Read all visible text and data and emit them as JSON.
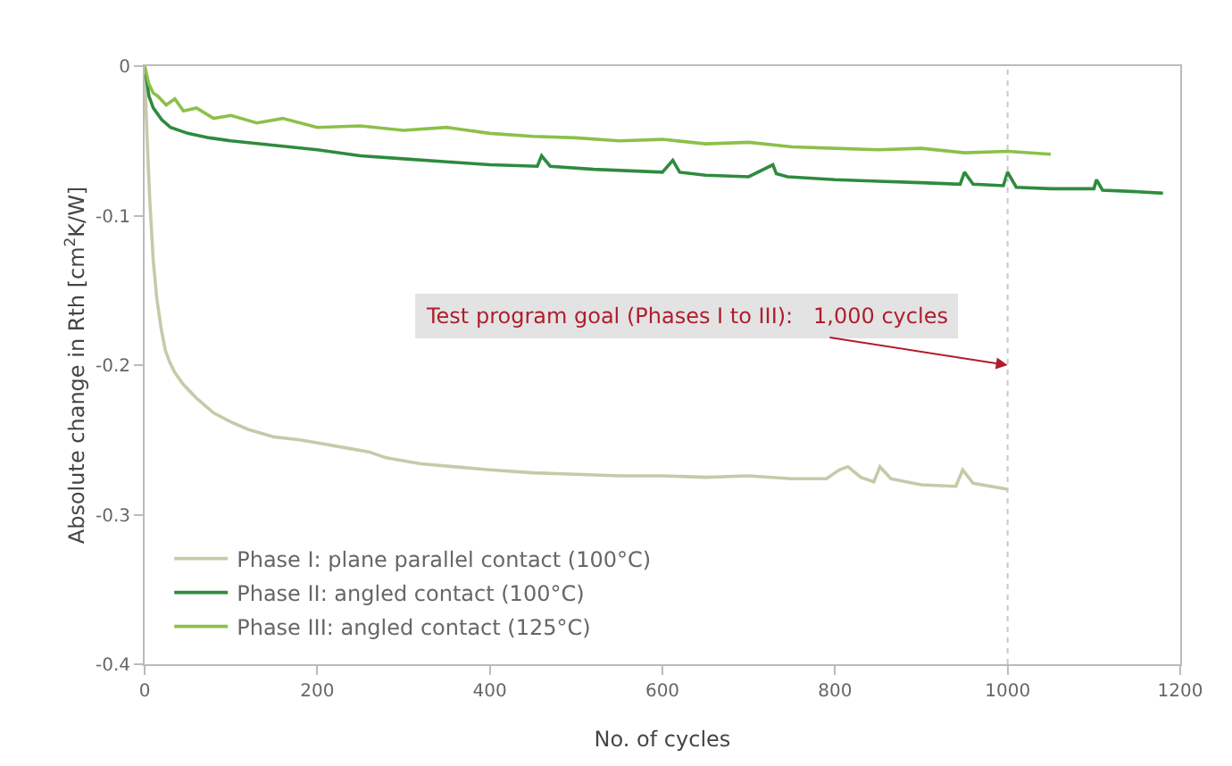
{
  "chart_data": {
    "type": "line",
    "xlabel": "No. of cycles",
    "ylabel": "Absolute change in Rth [cm$^{2}$K/W]",
    "xlim": [
      0,
      1200
    ],
    "xticks": [
      0,
      200,
      400,
      600,
      800,
      1000,
      1200
    ],
    "ylim": [
      -0.4,
      0
    ],
    "yticks": [
      -0.4,
      -0.3,
      -0.2,
      -0.1,
      0
    ],
    "grid": false,
    "legend": "bottom left",
    "marker": "none",
    "line_style": "solid",
    "series": [
      {
        "name": "Phase I: plane parallel contact (100°C)",
        "color": "#c9c9a9",
        "x": [
          0,
          3,
          6,
          10,
          14,
          19,
          24,
          29,
          35,
          45,
          60,
          80,
          100,
          120,
          150,
          180,
          200,
          230,
          260,
          280,
          320,
          360,
          400,
          450,
          500,
          550,
          600,
          650,
          700,
          750,
          790,
          805,
          815,
          830,
          845,
          852,
          865,
          900,
          940,
          948,
          960,
          1000
        ],
        "values": [
          0,
          -0.05,
          -0.09,
          -0.13,
          -0.155,
          -0.175,
          -0.19,
          -0.198,
          -0.205,
          -0.213,
          -0.222,
          -0.232,
          -0.238,
          -0.243,
          -0.248,
          -0.25,
          -0.252,
          -0.255,
          -0.258,
          -0.262,
          -0.266,
          -0.268,
          -0.27,
          -0.272,
          -0.273,
          -0.274,
          -0.274,
          -0.275,
          -0.274,
          -0.276,
          -0.276,
          -0.27,
          -0.268,
          -0.275,
          -0.278,
          -0.268,
          -0.276,
          -0.28,
          -0.281,
          -0.27,
          -0.279,
          -0.283
        ]
      },
      {
        "name": "Phase II: angled contact (100°C)",
        "color": "#2e8b3e",
        "x": [
          0,
          5,
          10,
          20,
          30,
          50,
          75,
          100,
          150,
          200,
          250,
          300,
          350,
          400,
          455,
          460,
          470,
          520,
          600,
          612,
          620,
          650,
          700,
          728,
          732,
          745,
          800,
          850,
          900,
          945,
          950,
          960,
          995,
          1000,
          1010,
          1050,
          1100,
          1103,
          1110,
          1150,
          1180
        ],
        "values": [
          0,
          -0.02,
          -0.028,
          -0.036,
          -0.041,
          -0.045,
          -0.048,
          -0.05,
          -0.053,
          -0.056,
          -0.06,
          -0.062,
          -0.064,
          -0.066,
          -0.067,
          -0.06,
          -0.067,
          -0.069,
          -0.071,
          -0.063,
          -0.071,
          -0.073,
          -0.074,
          -0.066,
          -0.072,
          -0.074,
          -0.076,
          -0.077,
          -0.078,
          -0.079,
          -0.071,
          -0.079,
          -0.08,
          -0.071,
          -0.081,
          -0.082,
          -0.082,
          -0.076,
          -0.083,
          -0.084,
          -0.085
        ]
      },
      {
        "name": "Phase III: angled contact (125°C)",
        "color": "#8cc04a",
        "x": [
          0,
          5,
          10,
          15,
          25,
          35,
          45,
          60,
          80,
          100,
          130,
          160,
          200,
          250,
          300,
          350,
          400,
          450,
          500,
          550,
          600,
          650,
          700,
          750,
          800,
          850,
          900,
          950,
          1000,
          1050
        ],
        "values": [
          0,
          -0.012,
          -0.018,
          -0.02,
          -0.026,
          -0.022,
          -0.03,
          -0.028,
          -0.035,
          -0.033,
          -0.038,
          -0.035,
          -0.041,
          -0.04,
          -0.043,
          -0.041,
          -0.045,
          -0.047,
          -0.048,
          -0.05,
          -0.049,
          -0.052,
          -0.051,
          -0.054,
          -0.055,
          -0.056,
          -0.055,
          -0.058,
          -0.057,
          -0.059
        ]
      }
    ],
    "ref_lines": [
      {
        "axis": "x",
        "value": 1000,
        "color": "#c8c8c8",
        "line_style": "dotted"
      }
    ],
    "annotations": [
      {
        "text": "Test program goal (Phases I to III):   1,000 cycles",
        "x": 1000,
        "y": -0.2
      }
    ]
  }
}
